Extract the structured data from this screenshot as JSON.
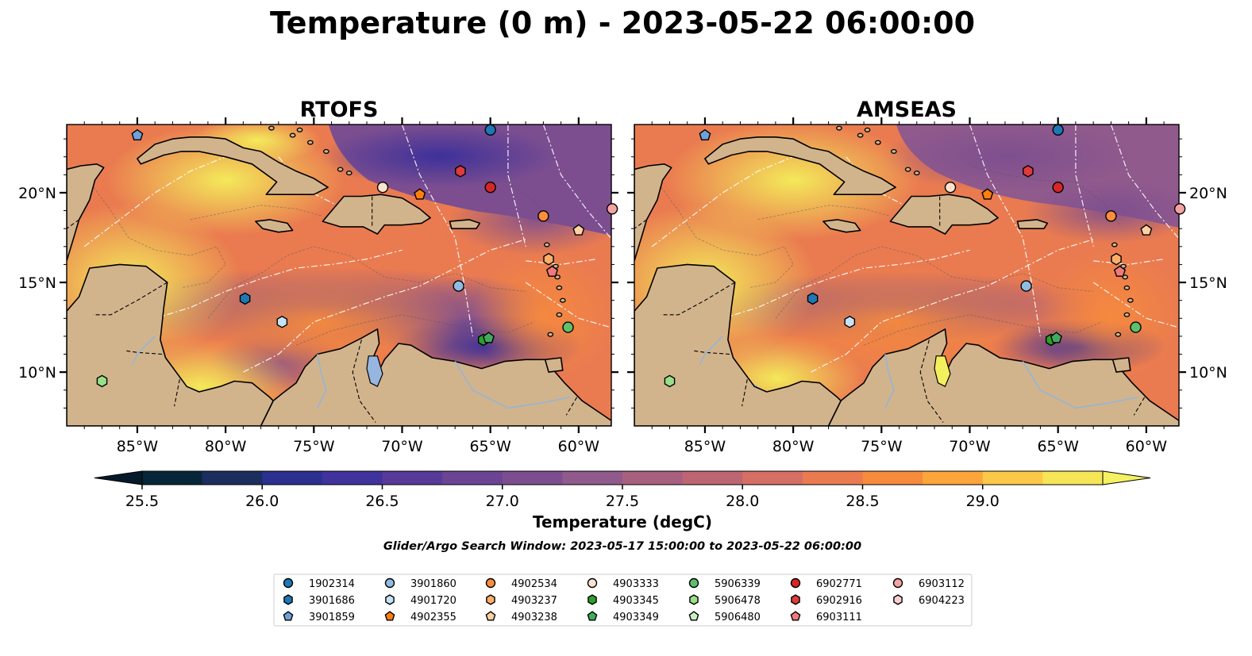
{
  "title": "Temperature (0 m) - 2023-05-22 06:00:00",
  "panels": [
    {
      "name": "RTOFS"
    },
    {
      "name": "AMSEAS"
    }
  ],
  "x_ticks": [
    "85°W",
    "80°W",
    "75°W",
    "70°W",
    "65°W",
    "60°W"
  ],
  "y_ticks": [
    "20°N",
    "15°N",
    "10°N"
  ],
  "colorbar": {
    "label": "Temperature (degC)",
    "min": 25.5,
    "max": 29.25,
    "step": 0.25,
    "ticks": [
      "25.5",
      "26.0",
      "26.5",
      "27.0",
      "27.5",
      "28.0",
      "28.5",
      "29.0"
    ],
    "colors": [
      "#08263a",
      "#1b2e5e",
      "#2c3190",
      "#40339e",
      "#583a99",
      "#6b4593",
      "#7c4e90",
      "#905a8c",
      "#a8607f",
      "#bd6673",
      "#d56e64",
      "#ea7b50",
      "#f68a3d",
      "#fba53a",
      "#fcc84a",
      "#f7e558"
    ]
  },
  "search_window": "Glider/Argo Search Window: 2023-05-17 15:00:00 to 2023-05-22 06:00:00",
  "legend": [
    {
      "id": "1902314",
      "marker": "circle",
      "color": "#1f77b4"
    },
    {
      "id": "3901686",
      "marker": "hexagon",
      "color": "#1f77b4"
    },
    {
      "id": "3901859",
      "marker": "pentagon",
      "color": "#6fa1d8"
    },
    {
      "id": "3901860",
      "marker": "circle",
      "color": "#8fbce4"
    },
    {
      "id": "4901720",
      "marker": "hexagon",
      "color": "#c6e2f5"
    },
    {
      "id": "4902355",
      "marker": "pentagon",
      "color": "#ff7f0e"
    },
    {
      "id": "4902534",
      "marker": "circle",
      "color": "#fd8d3c"
    },
    {
      "id": "4903237",
      "marker": "hexagon",
      "color": "#fdae6b"
    },
    {
      "id": "4903238",
      "marker": "pentagon",
      "color": "#fdd0a2"
    },
    {
      "id": "4903333",
      "marker": "circle",
      "color": "#fde2cf"
    },
    {
      "id": "4903345",
      "marker": "hexagon",
      "color": "#2ca02c"
    },
    {
      "id": "4903349",
      "marker": "pentagon",
      "color": "#41ab5d"
    },
    {
      "id": "5906339",
      "marker": "circle",
      "color": "#5fbf6a"
    },
    {
      "id": "5906478",
      "marker": "hexagon",
      "color": "#98df8a"
    },
    {
      "id": "5906480",
      "marker": "pentagon",
      "color": "#c7f0c3"
    },
    {
      "id": "6902771",
      "marker": "circle",
      "color": "#d62728"
    },
    {
      "id": "6902916",
      "marker": "hexagon",
      "color": "#de3b3b"
    },
    {
      "id": "6903111",
      "marker": "pentagon",
      "color": "#f07a7a"
    },
    {
      "id": "6903112",
      "marker": "circle",
      "color": "#f4a3a3"
    },
    {
      "id": "6904223",
      "marker": "hexagon",
      "color": "#fbd0d0"
    }
  ],
  "floats": [
    {
      "id": "1902314",
      "lon": -65.0,
      "lat": 23.5
    },
    {
      "id": "3901686",
      "lon": -78.9,
      "lat": 14.1
    },
    {
      "id": "3901859",
      "lon": -85.0,
      "lat": 23.2
    },
    {
      "id": "3901860",
      "lon": -66.8,
      "lat": 14.8
    },
    {
      "id": "4901720",
      "lon": -76.8,
      "lat": 12.8
    },
    {
      "id": "4902355",
      "lon": -69.0,
      "lat": 19.9
    },
    {
      "id": "4902534",
      "lon": -62.0,
      "lat": 18.7
    },
    {
      "id": "4903237",
      "lon": -61.7,
      "lat": 16.3
    },
    {
      "id": "4903238",
      "lon": -60.0,
      "lat": 17.9
    },
    {
      "id": "4903333",
      "lon": -71.1,
      "lat": 20.3
    },
    {
      "id": "4903345",
      "lon": -65.4,
      "lat": 11.8
    },
    {
      "id": "4903349",
      "lon": -65.1,
      "lat": 11.9
    },
    {
      "id": "5906339",
      "lon": -60.6,
      "lat": 12.5
    },
    {
      "id": "5906478",
      "lon": -87.0,
      "lat": 9.5
    },
    {
      "id": "6902771",
      "lon": -65.0,
      "lat": 20.3
    },
    {
      "id": "6902916",
      "lon": -66.7,
      "lat": 21.2
    },
    {
      "id": "6903111",
      "lon": -61.5,
      "lat": 15.6
    },
    {
      "id": "6903112",
      "lon": -58.1,
      "lat": 19.1
    }
  ]
}
